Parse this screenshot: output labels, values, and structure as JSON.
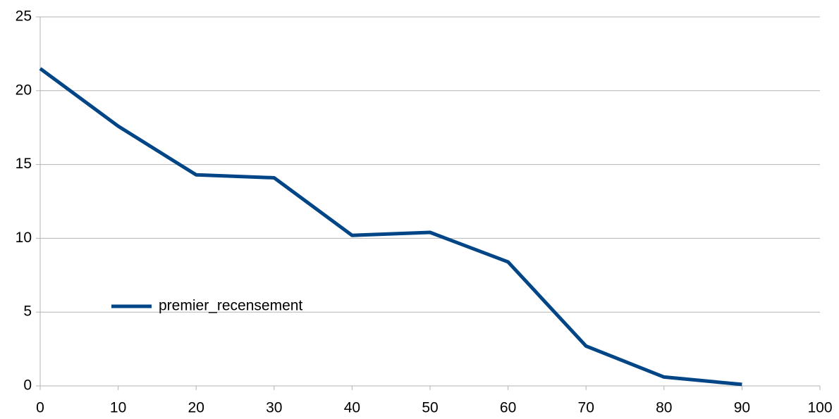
{
  "chart_data": {
    "type": "line",
    "x": [
      0,
      10,
      20,
      30,
      40,
      50,
      60,
      70,
      80,
      90
    ],
    "series": [
      {
        "name": "premier_recensement",
        "color": "#004586",
        "values": [
          21.5,
          17.6,
          14.3,
          14.1,
          10.2,
          10.4,
          8.4,
          2.7,
          0.6,
          0.1
        ]
      }
    ],
    "xlim": [
      0,
      100
    ],
    "xticks": [
      0,
      10,
      20,
      30,
      40,
      50,
      60,
      70,
      80,
      90,
      100
    ],
    "ylim": [
      0,
      25
    ],
    "yticks": [
      0,
      5,
      10,
      15,
      20,
      25
    ],
    "grid": true,
    "legend": "inside"
  }
}
